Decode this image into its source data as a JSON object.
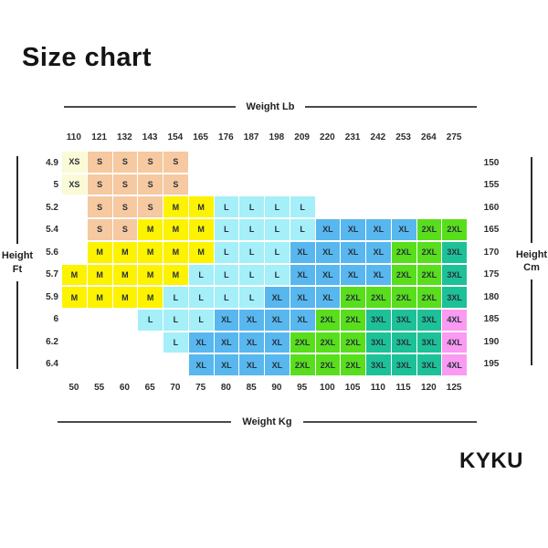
{
  "page": {
    "title": "Size chart",
    "brand": "KYKU"
  },
  "chart_data": {
    "type": "heatmap",
    "title": "Size chart",
    "axis_labels": {
      "top": "Weight Lb",
      "bottom": "Weight Kg",
      "left_line1": "Height",
      "left_line2": "Ft",
      "right_line1": "Height",
      "right_line2": "Cm"
    },
    "weight_lb_ticks": [
      "110",
      "121",
      "132",
      "143",
      "154",
      "165",
      "176",
      "187",
      "198",
      "209",
      "220",
      "231",
      "242",
      "253",
      "264",
      "275"
    ],
    "weight_kg_ticks": [
      "50",
      "55",
      "60",
      "65",
      "70",
      "75",
      "80",
      "85",
      "90",
      "95",
      "100",
      "105",
      "110",
      "115",
      "120",
      "125"
    ],
    "height_ft_ticks": [
      "4.9",
      "5",
      "5.2",
      "5.4",
      "5.6",
      "5.7",
      "5.9",
      "6",
      "6.2",
      "6.4"
    ],
    "height_cm_ticks": [
      "150",
      "155",
      "160",
      "165",
      "170",
      "175",
      "180",
      "185",
      "190",
      "195"
    ],
    "size_colors": {
      "XS": "#fafad6",
      "S": "#f6c9a0",
      "M": "#fdf200",
      "L": "#a5eff8",
      "XL": "#58b7ee",
      "2XL": "#58de1c",
      "3XL": "#1dc197",
      "4XL": "#fa9af2"
    },
    "cells": [
      [
        "XS",
        "S",
        "S",
        "S",
        "S",
        "",
        "",
        "",
        "",
        "",
        "",
        "",
        "",
        "",
        "",
        ""
      ],
      [
        "XS",
        "S",
        "S",
        "S",
        "S",
        "",
        "",
        "",
        "",
        "",
        "",
        "",
        "",
        "",
        "",
        ""
      ],
      [
        "",
        "S",
        "S",
        "S",
        "M",
        "M",
        "L",
        "L",
        "L",
        "L",
        "",
        "",
        "",
        "",
        "",
        ""
      ],
      [
        "",
        "S",
        "S",
        "M",
        "M",
        "M",
        "L",
        "L",
        "L",
        "L",
        "XL",
        "XL",
        "XL",
        "XL",
        "2XL",
        "2XL"
      ],
      [
        "",
        "M",
        "M",
        "M",
        "M",
        "M",
        "L",
        "L",
        "L",
        "XL",
        "XL",
        "XL",
        "XL",
        "2XL",
        "2XL",
        "3XL"
      ],
      [
        "M",
        "M",
        "M",
        "M",
        "M",
        "L",
        "L",
        "L",
        "L",
        "XL",
        "XL",
        "XL",
        "XL",
        "2XL",
        "2XL",
        "3XL"
      ],
      [
        "M",
        "M",
        "M",
        "M",
        "L",
        "L",
        "L",
        "L",
        "XL",
        "XL",
        "XL",
        "2XL",
        "2XL",
        "2XL",
        "2XL",
        "3XL"
      ],
      [
        "",
        "",
        "",
        "L",
        "L",
        "L",
        "XL",
        "XL",
        "XL",
        "XL",
        "2XL",
        "2XL",
        "3XL",
        "3XL",
        "3XL",
        "4XL"
      ],
      [
        "",
        "",
        "",
        "",
        "L",
        "XL",
        "XL",
        "XL",
        "XL",
        "2XL",
        "2XL",
        "2XL",
        "3XL",
        "3XL",
        "3XL",
        "4XL"
      ],
      [
        "",
        "",
        "",
        "",
        "",
        "XL",
        "XL",
        "XL",
        "XL",
        "2XL",
        "2XL",
        "2XL",
        "3XL",
        "3XL",
        "3XL",
        "4XL"
      ]
    ]
  }
}
